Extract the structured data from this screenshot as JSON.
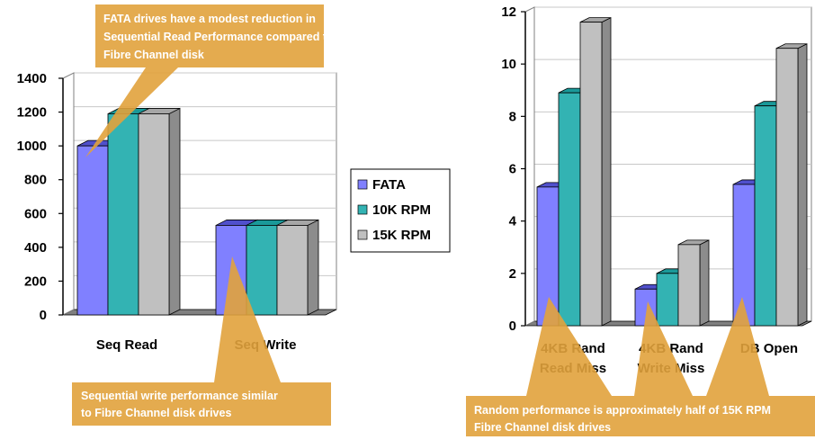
{
  "chart_data": [
    {
      "type": "bar",
      "categories": [
        "Seq Read",
        "Seq Write"
      ],
      "series": [
        {
          "name": "FATA",
          "values": [
            1000,
            530
          ]
        },
        {
          "name": "10K RPM",
          "values": [
            1190,
            530
          ]
        },
        {
          "name": "15K RPM",
          "values": [
            1190,
            530
          ]
        }
      ],
      "ylim": [
        0,
        1400
      ],
      "yticks": [
        "0",
        "200",
        "400",
        "600",
        "800",
        "1000",
        "1200",
        "1400"
      ],
      "legend": "right",
      "annotation": [
        "FATA drives have a modest reduction in",
        "Sequential Read Performance compared to",
        "Fibre Channel disk"
      ],
      "annotation2": [
        "Sequential write performance similar",
        "to Fibre Channel disk drives"
      ]
    },
    {
      "type": "bar",
      "categories": [
        [
          "4KB Rand",
          "Read Miss"
        ],
        [
          "4KB Rand",
          "Write Miss"
        ],
        [
          "DB Open",
          ""
        ]
      ],
      "series": [
        {
          "name": "FATA",
          "values": [
            5.3,
            1.4,
            5.4
          ]
        },
        {
          "name": "10K RPM",
          "values": [
            8.9,
            2.0,
            8.4
          ]
        },
        {
          "name": "15K RPM",
          "values": [
            11.6,
            3.1,
            10.6
          ]
        }
      ],
      "ylim": [
        0,
        12
      ],
      "yticks": [
        "0",
        "2",
        "4",
        "6",
        "8",
        "10",
        "12"
      ],
      "annotation": [
        "Random performance is approximately half of 15K RPM",
        "Fibre Channel disk drives"
      ]
    }
  ],
  "legend": [
    {
      "label": "FATA",
      "color": "#8080ff"
    },
    {
      "label": "10K RPM",
      "color": "#33b3b3"
    },
    {
      "label": "15K RPM",
      "color": "#c0c0c0"
    }
  ],
  "colors": {
    "callout": "#e1a23c",
    "callout_text": "#ffffff",
    "side": {
      "FATA": "#4d4dbb",
      "10K RPM": "#1e8a8a",
      "15K RPM": "#8c8c8c"
    },
    "top": {
      "FATA": "#5050cc",
      "10K RPM": "#1a9999",
      "15K RPM": "#a6a6a6"
    }
  }
}
